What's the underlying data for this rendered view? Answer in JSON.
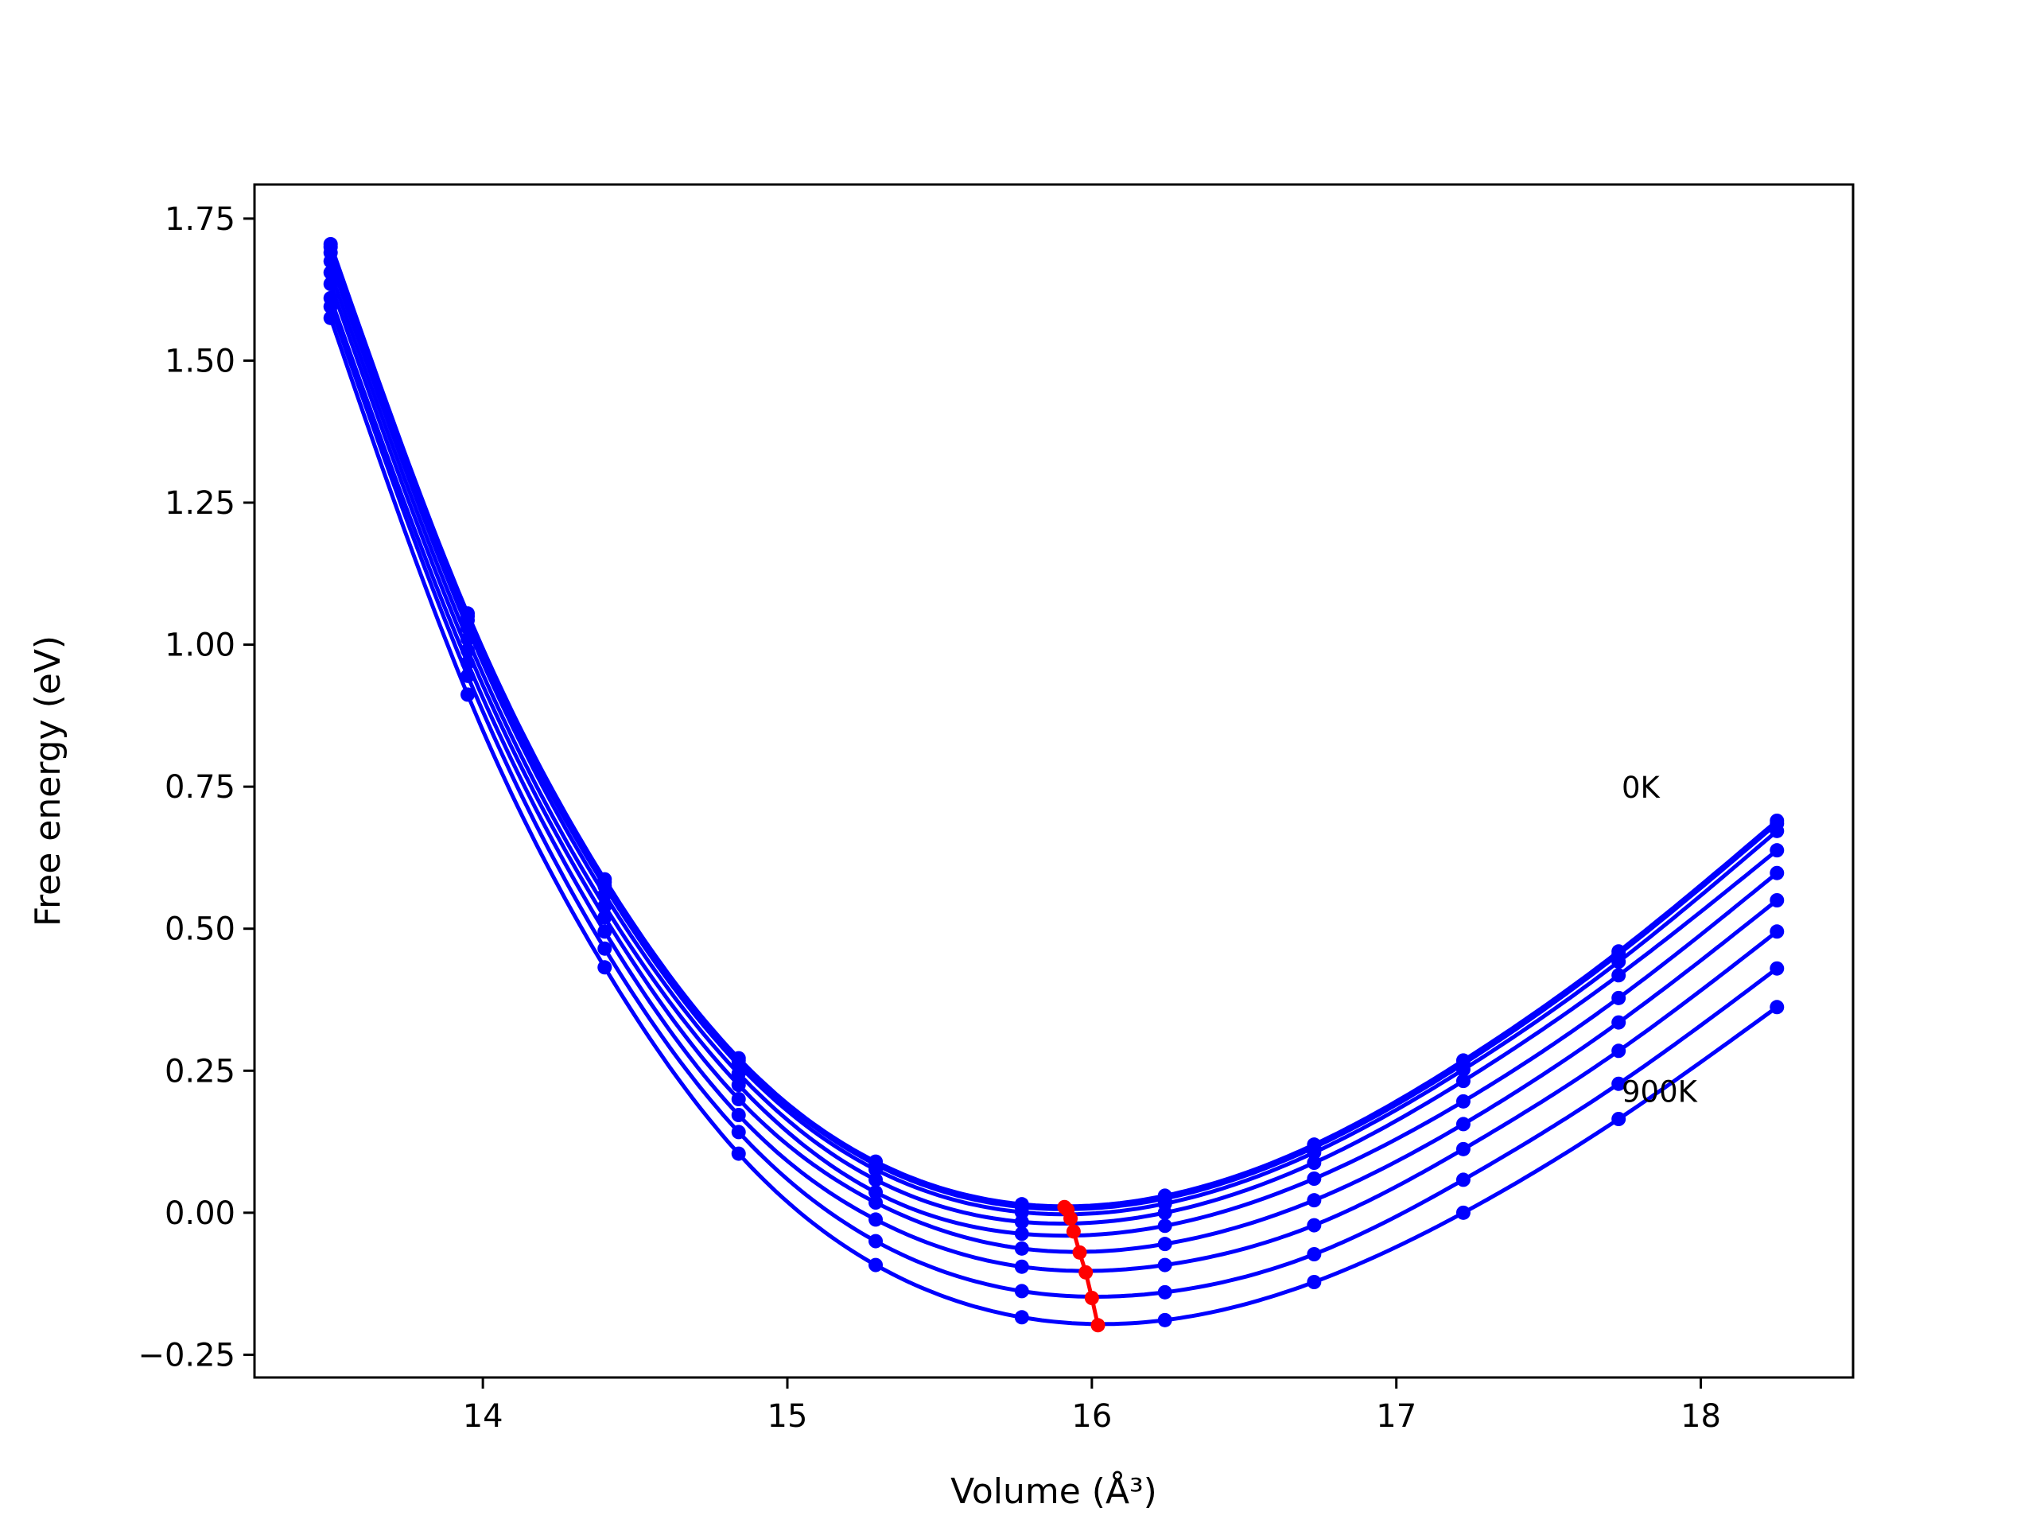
{
  "chart_data": {
    "type": "line",
    "xlabel": "Volume (Å³)",
    "ylabel": "Free energy (eV)",
    "xlim": [
      13.25,
      18.5
    ],
    "ylim": [
      -0.29,
      1.81
    ],
    "x_ticks": [
      14,
      15,
      16,
      17,
      18
    ],
    "x_tick_labels": [
      "14",
      "15",
      "16",
      "17",
      "18"
    ],
    "y_ticks": [
      -0.25,
      0.0,
      0.25,
      0.5,
      0.75,
      1.0,
      1.25,
      1.5,
      1.75
    ],
    "y_tick_labels": [
      "−0.25",
      "0.00",
      "0.25",
      "0.50",
      "0.75",
      "1.00",
      "1.25",
      "1.50",
      "1.75"
    ],
    "grid": false,
    "legend": "none",
    "x": [
      13.5,
      13.95,
      14.4,
      14.84,
      15.29,
      15.77,
      16.24,
      16.73,
      17.22,
      17.73,
      18.25
    ],
    "series": [
      {
        "values": [
          1.705,
          1.055,
          0.587,
          0.272,
          0.09,
          0.015,
          0.03,
          0.12,
          0.268,
          0.46,
          0.69
        ]
      },
      {
        "values": [
          1.7,
          1.05,
          0.582,
          0.268,
          0.085,
          0.01,
          0.025,
          0.115,
          0.262,
          0.455,
          0.685
        ]
      },
      {
        "values": [
          1.69,
          1.043,
          0.575,
          0.26,
          0.076,
          0.001,
          0.016,
          0.106,
          0.252,
          0.442,
          0.672
        ]
      },
      {
        "values": [
          1.675,
          1.03,
          0.56,
          0.245,
          0.058,
          -0.016,
          0.0,
          0.088,
          0.232,
          0.418,
          0.638
        ]
      },
      {
        "values": [
          1.655,
          1.01,
          0.54,
          0.225,
          0.036,
          -0.037,
          -0.023,
          0.06,
          0.196,
          0.378,
          0.598
        ]
      },
      {
        "values": [
          1.635,
          0.99,
          0.52,
          0.2,
          0.018,
          -0.063,
          -0.055,
          0.022,
          0.156,
          0.335,
          0.55
        ]
      },
      {
        "values": [
          1.61,
          0.968,
          0.495,
          0.172,
          -0.012,
          -0.095,
          -0.092,
          -0.022,
          0.112,
          0.285,
          0.495
        ]
      },
      {
        "values": [
          1.595,
          0.945,
          0.465,
          0.142,
          -0.05,
          -0.138,
          -0.14,
          -0.073,
          0.058,
          0.227,
          0.43
        ]
      },
      {
        "values": [
          1.575,
          0.912,
          0.432,
          0.104,
          -0.092,
          -0.184,
          -0.189,
          -0.122,
          0.0,
          0.165,
          0.362
        ]
      }
    ],
    "minimum_curve": {
      "color": "#ff0000",
      "x": [
        15.91,
        15.92,
        15.93,
        15.94,
        15.96,
        15.98,
        16.0,
        16.02
      ],
      "values": [
        0.01,
        0.005,
        -0.01,
        -0.033,
        -0.07,
        -0.105,
        -0.15,
        -0.198
      ]
    },
    "annotations": [
      {
        "text": "0K",
        "x": 17.74,
        "y": 0.75
      },
      {
        "text": "900K",
        "x": 17.74,
        "y": 0.215
      }
    ],
    "colors": {
      "curves": "#0000ff",
      "minimum": "#ff0000",
      "axes": "#000000"
    }
  }
}
